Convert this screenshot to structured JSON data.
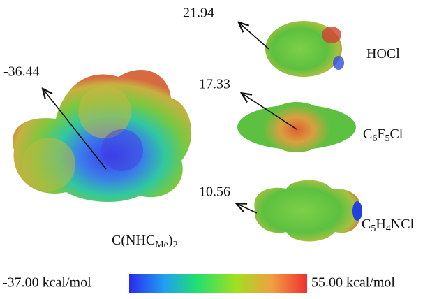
{
  "molecules": [
    {
      "value": -36.44,
      "name": [
        {
          "t": "C(NHC"
        },
        {
          "sub": "Me"
        },
        {
          "t": ")"
        },
        {
          "sub": "2"
        }
      ]
    },
    {
      "value": 21.94,
      "name": [
        {
          "t": "HOCl"
        }
      ]
    },
    {
      "value": 17.33,
      "name": [
        {
          "t": "C"
        },
        {
          "sub": "6"
        },
        {
          "t": "F"
        },
        {
          "sub": "5"
        },
        {
          "t": "Cl"
        }
      ]
    },
    {
      "value": 10.56,
      "name": [
        {
          "t": "C"
        },
        {
          "sub": "5"
        },
        {
          "t": "H"
        },
        {
          "sub": "4"
        },
        {
          "t": "NCl"
        }
      ]
    }
  ],
  "color_bar": {
    "min_label": "-37.00 kcal/mol",
    "max_label": "55.00 kcal/mol"
  }
}
